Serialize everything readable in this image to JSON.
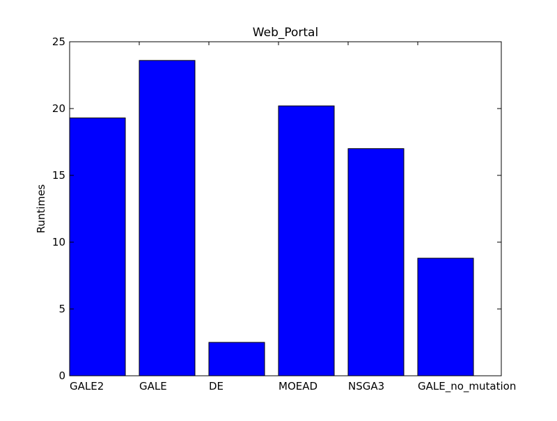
{
  "chart_data": {
    "type": "bar",
    "title": "Web_Portal",
    "xlabel": "",
    "ylabel": "Runtimes",
    "categories": [
      "GALE2",
      "GALE",
      "DE",
      "MOEAD",
      "NSGA3",
      "GALE_no_mutation"
    ],
    "values": [
      19.3,
      23.6,
      2.5,
      20.2,
      17.0,
      8.8
    ],
    "ylim": [
      0,
      25
    ],
    "yticks": [
      "0",
      "5",
      "10",
      "15",
      "20",
      "25"
    ],
    "grid": false,
    "legend": "none",
    "bar_color": "#0000ff",
    "edge_color": "#000000"
  }
}
